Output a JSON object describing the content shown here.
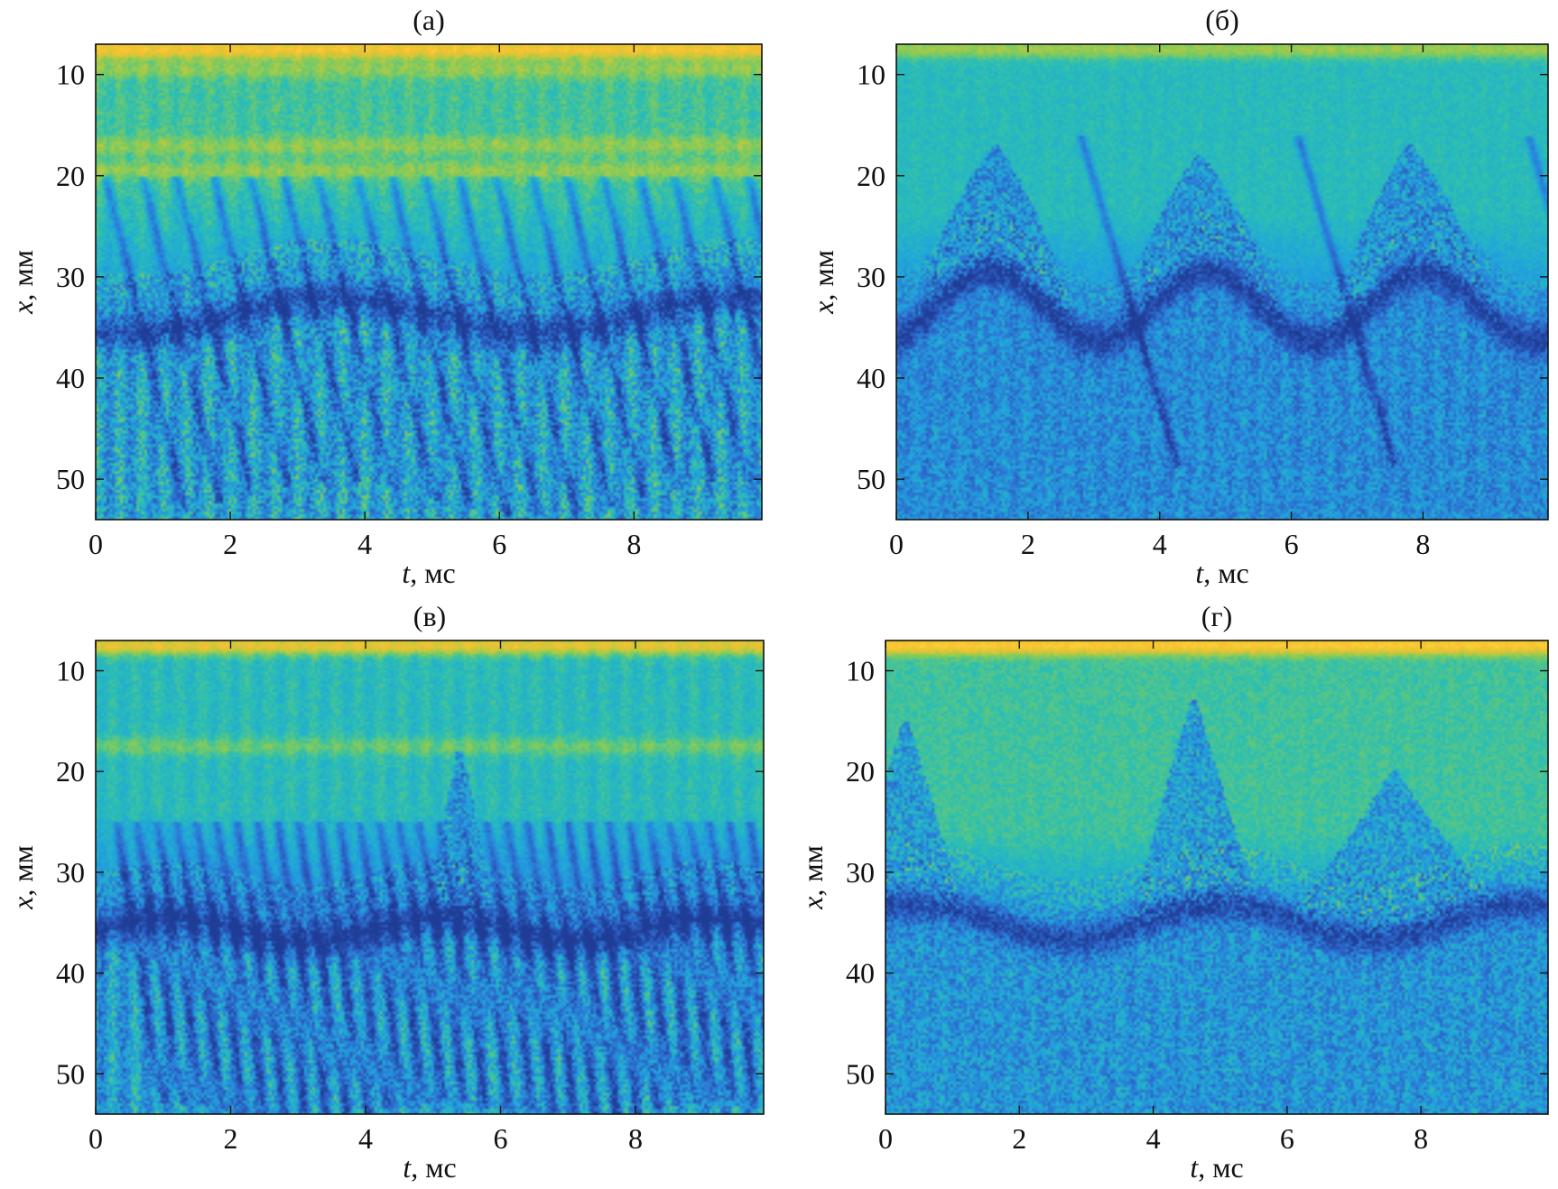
{
  "colors": {
    "colormap": [
      "#1f3d96",
      "#2a55b8",
      "#2c7bd6",
      "#20a4dd",
      "#2bbfb4",
      "#7ccb5f",
      "#c9c93a",
      "#f6c131",
      "#fbd83a"
    ],
    "axes": "#111111",
    "background": "#ffffff"
  },
  "chart_data": [
    {
      "type": "heatmap",
      "panel_label": "(а)",
      "xlabel_var": "t",
      "xlabel_unit": ", мс",
      "ylabel_var": "x",
      "ylabel_unit": ", мм",
      "xlim": [
        0,
        9.9
      ],
      "ylim": [
        7,
        54
      ],
      "y_inverted": true,
      "xticks": [
        0,
        2,
        4,
        6,
        8
      ],
      "yticks": [
        10,
        20,
        30,
        40,
        50
      ],
      "grid": false,
      "features": {
        "front_mean_mm": 34,
        "front_amp_mm": 1.8,
        "front_period_ms": 6,
        "pulse_times_ms": [
          0.15,
          0.7,
          1.2,
          1.75,
          2.3,
          2.8,
          3.3,
          3.9,
          4.4,
          4.9,
          5.4,
          5.95,
          6.5,
          7.0,
          7.55,
          8.1,
          8.6,
          9.2,
          9.7
        ],
        "pulse_top_mm": 20,
        "pulse_slope_mm_per_ms": 28,
        "hot_rows_mm": [
          7.5,
          9.5,
          17,
          19.5
        ],
        "top_bright_level": 0.95,
        "upper_level": 0.6,
        "gradient_start_mm": 21,
        "lower_level": 0.38,
        "streak_strength": 0.18,
        "speckle_strength": 0.35,
        "bulges": []
      }
    },
    {
      "type": "heatmap",
      "panel_label": "(б)",
      "xlabel_var": "t",
      "xlabel_unit": ", мс",
      "ylabel_var": "x",
      "ylabel_unit": ", мм",
      "xlim": [
        0,
        9.9
      ],
      "ylim": [
        7,
        54
      ],
      "y_inverted": true,
      "xticks": [
        0,
        2,
        4,
        6,
        8
      ],
      "yticks": [
        10,
        20,
        30,
        40,
        50
      ],
      "grid": false,
      "features": {
        "front_mean_mm": 33,
        "front_amp_mm": 3.5,
        "front_period_ms": 3.3,
        "pulse_times_ms": [
          2.8,
          6.1,
          9.6
        ],
        "pulse_top_mm": 16,
        "pulse_slope_mm_per_ms": 22,
        "hot_rows_mm": [
          7.5
        ],
        "top_bright_level": 0.7,
        "upper_level": 0.5,
        "gradient_start_mm": 24,
        "lower_level": 0.3,
        "streak_strength": 0.06,
        "speckle_strength": 0.25,
        "bulges": [
          {
            "t": 1.5,
            "x_top": 17,
            "w": 1.3
          },
          {
            "t": 4.6,
            "x_top": 18,
            "w": 1.3
          },
          {
            "t": 7.8,
            "x_top": 17,
            "w": 1.3
          }
        ]
      }
    },
    {
      "type": "heatmap",
      "panel_label": "(в)",
      "xlabel_var": "t",
      "xlabel_unit": ", мс",
      "ylabel_var": "x",
      "ylabel_unit": ", мм",
      "xlim": [
        0,
        9.9
      ],
      "ylim": [
        7,
        54
      ],
      "y_inverted": true,
      "xticks": [
        0,
        2,
        4,
        6,
        8
      ],
      "yticks": [
        10,
        20,
        30,
        40,
        50
      ],
      "grid": false,
      "features": {
        "front_mean_mm": 36,
        "front_amp_mm": 1.2,
        "front_period_ms": 4,
        "pulse_times_ms": [
          0.3,
          0.6,
          0.9,
          1.2,
          1.5,
          1.8,
          2.1,
          2.4,
          2.7,
          3.0,
          3.3,
          3.6,
          3.9,
          4.2,
          4.5,
          4.8,
          5.1,
          5.45,
          5.8,
          6.1,
          6.4,
          6.7,
          7.0,
          7.3,
          7.6,
          7.9,
          8.2,
          8.5,
          8.8,
          9.1,
          9.4,
          9.7
        ],
        "pulse_top_mm": 25,
        "pulse_slope_mm_per_ms": 40,
        "hot_rows_mm": [
          7.5,
          17.5
        ],
        "top_bright_level": 0.9,
        "upper_level": 0.55,
        "gradient_start_mm": 24,
        "lower_level": 0.36,
        "streak_strength": 0.2,
        "speckle_strength": 0.3,
        "bulges": [
          {
            "t": 5.4,
            "x_top": 18,
            "w": 0.5
          }
        ]
      }
    },
    {
      "type": "heatmap",
      "panel_label": "(г)",
      "xlabel_var": "t",
      "xlabel_unit": ", мс",
      "ylabel_var": "x",
      "ylabel_unit": ", мм",
      "xlim": [
        0,
        9.9
      ],
      "ylim": [
        7,
        54
      ],
      "y_inverted": true,
      "xticks": [
        0,
        2,
        4,
        6,
        8
      ],
      "yticks": [
        10,
        20,
        30,
        40,
        50
      ],
      "grid": false,
      "features": {
        "front_mean_mm": 35,
        "front_amp_mm": 1.8,
        "front_period_ms": 4.5,
        "pulse_times_ms": [],
        "pulse_top_mm": 20,
        "pulse_slope_mm_per_ms": 20,
        "hot_rows_mm": [
          7.5
        ],
        "top_bright_level": 0.95,
        "upper_level": 0.55,
        "gradient_start_mm": 26,
        "lower_level": 0.33,
        "streak_strength": 0.05,
        "speckle_strength": 0.28,
        "bulges": [
          {
            "t": 0.3,
            "x_top": 15,
            "w": 0.8
          },
          {
            "t": 4.6,
            "x_top": 13,
            "w": 0.9
          },
          {
            "t": 7.6,
            "x_top": 20,
            "w": 1.6
          }
        ]
      }
    }
  ]
}
